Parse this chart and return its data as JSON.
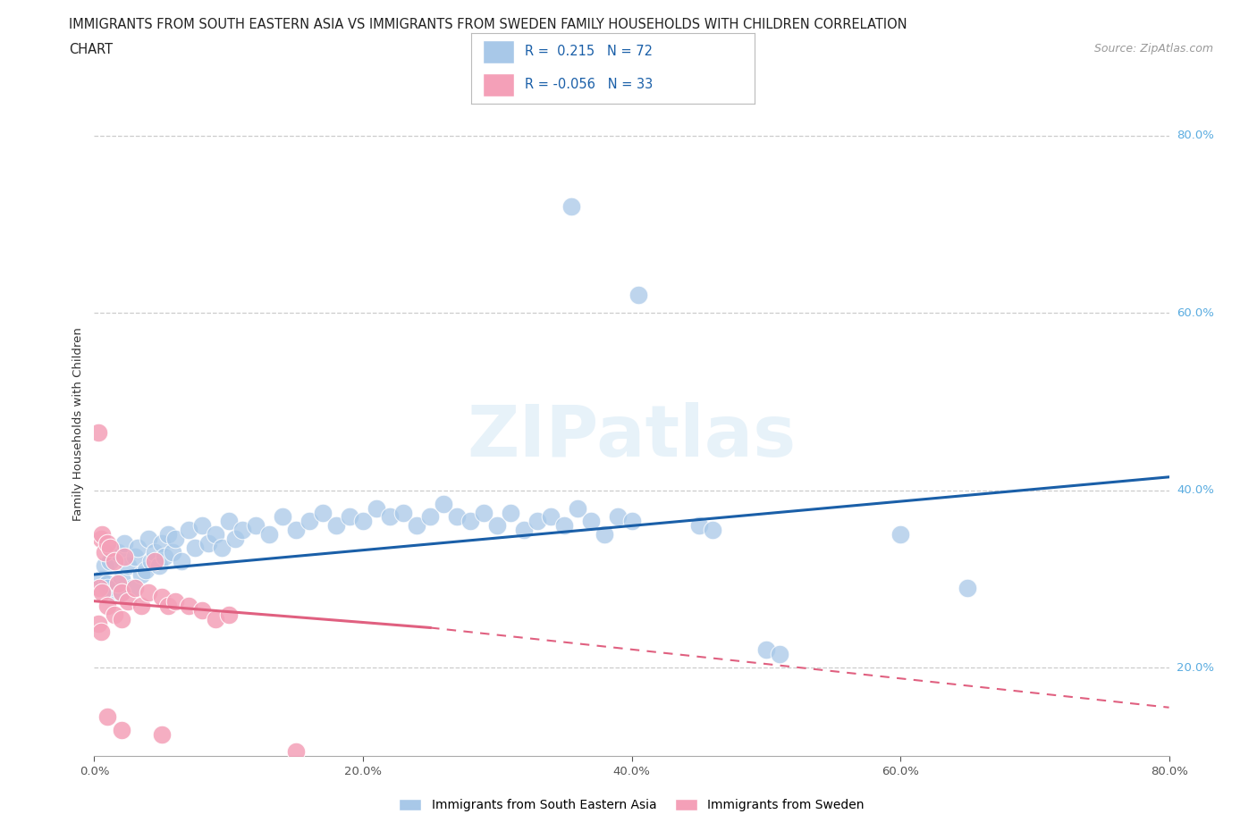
{
  "title_line1": "IMMIGRANTS FROM SOUTH EASTERN ASIA VS IMMIGRANTS FROM SWEDEN FAMILY HOUSEHOLDS WITH CHILDREN CORRELATION",
  "title_line2": "CHART",
  "source": "Source: ZipAtlas.com",
  "ylabel": "Family Households with Children",
  "watermark": "ZIPatlas",
  "blue_label": "Immigrants from South Eastern Asia",
  "pink_label": "Immigrants from Sweden",
  "blue_R": 0.215,
  "blue_N": 72,
  "pink_R": -0.056,
  "pink_N": 33,
  "xlim": [
    0.0,
    80.0
  ],
  "ylim": [
    10.0,
    85.0
  ],
  "x_ticks": [
    0.0,
    20.0,
    40.0,
    60.0,
    80.0
  ],
  "y_ticks": [
    20.0,
    40.0,
    60.0,
    80.0
  ],
  "blue_color": "#A8C8E8",
  "pink_color": "#F4A0B8",
  "blue_line_color": "#1A5FA8",
  "pink_line_color": "#E06080",
  "blue_dots": [
    [
      0.5,
      30.0
    ],
    [
      0.8,
      31.5
    ],
    [
      1.0,
      29.5
    ],
    [
      1.2,
      32.0
    ],
    [
      1.5,
      28.5
    ],
    [
      1.8,
      33.0
    ],
    [
      2.0,
      30.0
    ],
    [
      2.2,
      34.0
    ],
    [
      2.5,
      31.5
    ],
    [
      2.8,
      29.0
    ],
    [
      3.0,
      32.5
    ],
    [
      3.2,
      33.5
    ],
    [
      3.5,
      30.5
    ],
    [
      3.8,
      31.0
    ],
    [
      4.0,
      34.5
    ],
    [
      4.2,
      32.0
    ],
    [
      4.5,
      33.0
    ],
    [
      4.8,
      31.5
    ],
    [
      5.0,
      34.0
    ],
    [
      5.2,
      32.5
    ],
    [
      5.5,
      35.0
    ],
    [
      5.8,
      33.0
    ],
    [
      6.0,
      34.5
    ],
    [
      6.5,
      32.0
    ],
    [
      7.0,
      35.5
    ],
    [
      7.5,
      33.5
    ],
    [
      8.0,
      36.0
    ],
    [
      8.5,
      34.0
    ],
    [
      9.0,
      35.0
    ],
    [
      9.5,
      33.5
    ],
    [
      10.0,
      36.5
    ],
    [
      10.5,
      34.5
    ],
    [
      11.0,
      35.5
    ],
    [
      12.0,
      36.0
    ],
    [
      13.0,
      35.0
    ],
    [
      14.0,
      37.0
    ],
    [
      15.0,
      35.5
    ],
    [
      16.0,
      36.5
    ],
    [
      17.0,
      37.5
    ],
    [
      18.0,
      36.0
    ],
    [
      19.0,
      37.0
    ],
    [
      20.0,
      36.5
    ],
    [
      21.0,
      38.0
    ],
    [
      22.0,
      37.0
    ],
    [
      23.0,
      37.5
    ],
    [
      24.0,
      36.0
    ],
    [
      25.0,
      37.0
    ],
    [
      26.0,
      38.5
    ],
    [
      27.0,
      37.0
    ],
    [
      28.0,
      36.5
    ],
    [
      29.0,
      37.5
    ],
    [
      30.0,
      36.0
    ],
    [
      31.0,
      37.5
    ],
    [
      32.0,
      35.5
    ],
    [
      33.0,
      36.5
    ],
    [
      34.0,
      37.0
    ],
    [
      35.0,
      36.0
    ],
    [
      36.0,
      38.0
    ],
    [
      37.0,
      36.5
    ],
    [
      38.0,
      35.0
    ],
    [
      39.0,
      37.0
    ],
    [
      40.0,
      36.5
    ],
    [
      40.5,
      62.0
    ],
    [
      35.5,
      72.0
    ],
    [
      45.0,
      36.0
    ],
    [
      46.0,
      35.5
    ],
    [
      50.0,
      22.0
    ],
    [
      51.0,
      21.5
    ],
    [
      60.0,
      35.0
    ],
    [
      65.0,
      29.0
    ],
    [
      1.0,
      29.0
    ],
    [
      2.0,
      28.5
    ]
  ],
  "pink_dots": [
    [
      0.3,
      46.5
    ],
    [
      0.5,
      34.5
    ],
    [
      0.6,
      35.0
    ],
    [
      0.8,
      33.0
    ],
    [
      1.0,
      34.0
    ],
    [
      1.2,
      33.5
    ],
    [
      1.5,
      32.0
    ],
    [
      1.8,
      29.5
    ],
    [
      2.0,
      28.5
    ],
    [
      2.2,
      32.5
    ],
    [
      2.5,
      27.5
    ],
    [
      3.0,
      29.0
    ],
    [
      3.5,
      27.0
    ],
    [
      4.0,
      28.5
    ],
    [
      4.5,
      32.0
    ],
    [
      5.0,
      28.0
    ],
    [
      5.5,
      27.0
    ],
    [
      6.0,
      27.5
    ],
    [
      7.0,
      27.0
    ],
    [
      8.0,
      26.5
    ],
    [
      9.0,
      25.5
    ],
    [
      10.0,
      26.0
    ],
    [
      0.4,
      29.0
    ],
    [
      0.6,
      28.5
    ],
    [
      1.0,
      27.0
    ],
    [
      1.5,
      26.0
    ],
    [
      2.0,
      25.5
    ],
    [
      0.3,
      25.0
    ],
    [
      0.5,
      24.0
    ],
    [
      1.0,
      14.5
    ],
    [
      2.0,
      13.0
    ],
    [
      5.0,
      12.5
    ],
    [
      15.0,
      10.5
    ]
  ],
  "blue_trendline": [
    [
      0,
      30.5
    ],
    [
      80,
      41.5
    ]
  ],
  "pink_trendline_solid": [
    [
      0,
      27.5
    ],
    [
      25,
      24.5
    ]
  ],
  "pink_trendline_dashed": [
    [
      25,
      24.5
    ],
    [
      80,
      15.5
    ]
  ]
}
